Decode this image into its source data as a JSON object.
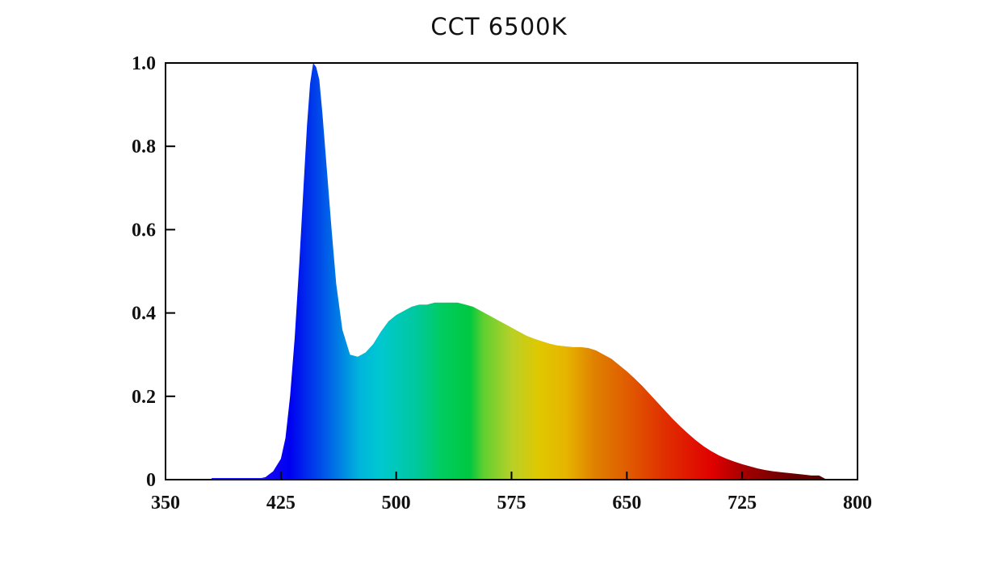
{
  "chart_data": {
    "type": "area",
    "title": "CCT 6500K",
    "xlabel": "",
    "ylabel": "",
    "xlim": [
      350,
      800
    ],
    "ylim": [
      0,
      1.0
    ],
    "x_ticks": [
      {
        "value": 350,
        "label": "350"
      },
      {
        "value": 425,
        "label": "425"
      },
      {
        "value": 500,
        "label": "500"
      },
      {
        "value": 575,
        "label": "575"
      },
      {
        "value": 650,
        "label": "650"
      },
      {
        "value": 725,
        "label": "725"
      },
      {
        "value": 800,
        "label": "800"
      }
    ],
    "y_ticks": [
      {
        "value": 0,
        "label": "0"
      },
      {
        "value": 0.2,
        "label": "0.2"
      },
      {
        "value": 0.4,
        "label": "0.4"
      },
      {
        "value": 0.6,
        "label": "0.6"
      },
      {
        "value": 0.8,
        "label": "0.8"
      },
      {
        "value": 1.0,
        "label": "1.0"
      }
    ],
    "grid": false,
    "fill": "spectral",
    "x": [
      380,
      395,
      410,
      415,
      420,
      425,
      428,
      431,
      434,
      437,
      440,
      442,
      444,
      446,
      448,
      450,
      452,
      455,
      458,
      461,
      465,
      470,
      475,
      480,
      485,
      490,
      495,
      500,
      505,
      510,
      515,
      520,
      525,
      530,
      535,
      540,
      545,
      550,
      555,
      560,
      565,
      570,
      575,
      580,
      585,
      590,
      595,
      600,
      605,
      610,
      615,
      620,
      625,
      630,
      635,
      640,
      645,
      650,
      655,
      660,
      665,
      670,
      675,
      680,
      685,
      690,
      695,
      700,
      705,
      710,
      715,
      720,
      725,
      730,
      735,
      740,
      745,
      750,
      755,
      760,
      765,
      770,
      775,
      780
    ],
    "y": [
      0.0,
      0.0,
      0.002,
      0.006,
      0.02,
      0.05,
      0.1,
      0.2,
      0.34,
      0.52,
      0.72,
      0.85,
      0.95,
      1.0,
      0.99,
      0.96,
      0.88,
      0.74,
      0.6,
      0.47,
      0.36,
      0.3,
      0.295,
      0.305,
      0.325,
      0.355,
      0.38,
      0.395,
      0.405,
      0.415,
      0.42,
      0.42,
      0.425,
      0.425,
      0.425,
      0.425,
      0.42,
      0.415,
      0.405,
      0.395,
      0.385,
      0.375,
      0.365,
      0.355,
      0.345,
      0.338,
      0.332,
      0.326,
      0.322,
      0.32,
      0.318,
      0.318,
      0.316,
      0.31,
      0.3,
      0.29,
      0.275,
      0.26,
      0.243,
      0.225,
      0.205,
      0.185,
      0.165,
      0.145,
      0.127,
      0.11,
      0.094,
      0.08,
      0.068,
      0.058,
      0.05,
      0.043,
      0.037,
      0.032,
      0.027,
      0.023,
      0.02,
      0.018,
      0.016,
      0.014,
      0.012,
      0.01,
      0.01,
      0.0
    ]
  }
}
